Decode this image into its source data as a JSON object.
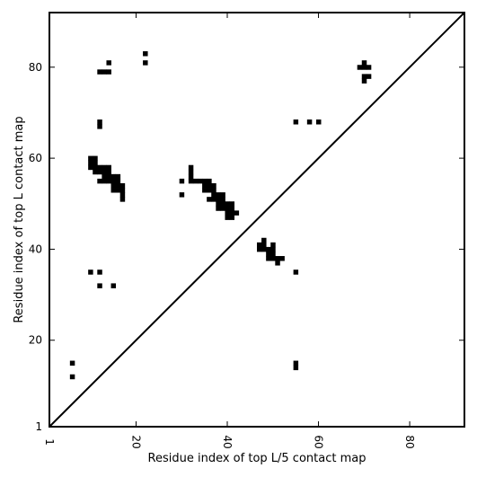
{
  "chart_data": {
    "type": "heatmap",
    "xlabel": "Residue index of top L/5 contact map",
    "ylabel": "Residue index of top L contact map",
    "xlim": [
      1,
      92
    ],
    "ylim": [
      1,
      92
    ],
    "xticks": [
      1,
      20,
      40,
      60,
      80
    ],
    "yticks": [
      1,
      20,
      40,
      60,
      80
    ],
    "grid": false,
    "diagonal": true,
    "cell_color": "#000000",
    "cells": [
      [
        22,
        83
      ],
      [
        22,
        81
      ],
      [
        14,
        81
      ],
      [
        12,
        79
      ],
      [
        13,
        79
      ],
      [
        14,
        79
      ],
      [
        12,
        68
      ],
      [
        12,
        67
      ],
      [
        70,
        81
      ],
      [
        69,
        80
      ],
      [
        70,
        80
      ],
      [
        71,
        80
      ],
      [
        70,
        78
      ],
      [
        71,
        78
      ],
      [
        70,
        77
      ],
      [
        55,
        68
      ],
      [
        58,
        68
      ],
      [
        60,
        68
      ],
      [
        10,
        60
      ],
      [
        11,
        60
      ],
      [
        10,
        59
      ],
      [
        11,
        59
      ],
      [
        10,
        58
      ],
      [
        11,
        58
      ],
      [
        12,
        58
      ],
      [
        13,
        58
      ],
      [
        14,
        58
      ],
      [
        11,
        57
      ],
      [
        12,
        57
      ],
      [
        13,
        57
      ],
      [
        14,
        57
      ],
      [
        13,
        56
      ],
      [
        14,
        56
      ],
      [
        15,
        56
      ],
      [
        16,
        56
      ],
      [
        12,
        55
      ],
      [
        13,
        55
      ],
      [
        14,
        55
      ],
      [
        15,
        55
      ],
      [
        16,
        55
      ],
      [
        15,
        54
      ],
      [
        16,
        54
      ],
      [
        17,
        54
      ],
      [
        15,
        53
      ],
      [
        16,
        53
      ],
      [
        17,
        53
      ],
      [
        17,
        52
      ],
      [
        17,
        51
      ],
      [
        32,
        58
      ],
      [
        32,
        57
      ],
      [
        32,
        56
      ],
      [
        32,
        55
      ],
      [
        33,
        55
      ],
      [
        34,
        55
      ],
      [
        35,
        55
      ],
      [
        36,
        55
      ],
      [
        35,
        54
      ],
      [
        36,
        54
      ],
      [
        37,
        54
      ],
      [
        35,
        53
      ],
      [
        36,
        53
      ],
      [
        37,
        53
      ],
      [
        37,
        52
      ],
      [
        38,
        52
      ],
      [
        39,
        52
      ],
      [
        36,
        51
      ],
      [
        37,
        51
      ],
      [
        38,
        51
      ],
      [
        39,
        51
      ],
      [
        38,
        50
      ],
      [
        39,
        50
      ],
      [
        40,
        50
      ],
      [
        41,
        50
      ],
      [
        38,
        49
      ],
      [
        39,
        49
      ],
      [
        40,
        49
      ],
      [
        41,
        49
      ],
      [
        40,
        48
      ],
      [
        41,
        48
      ],
      [
        42,
        48
      ],
      [
        40,
        47
      ],
      [
        41,
        47
      ],
      [
        30,
        55
      ],
      [
        30,
        52
      ],
      [
        48,
        42
      ],
      [
        47,
        41
      ],
      [
        48,
        41
      ],
      [
        50,
        41
      ],
      [
        47,
        40
      ],
      [
        48,
        40
      ],
      [
        49,
        40
      ],
      [
        50,
        40
      ],
      [
        49,
        39
      ],
      [
        50,
        39
      ],
      [
        49,
        38
      ],
      [
        50,
        38
      ],
      [
        51,
        38
      ],
      [
        52,
        38
      ],
      [
        51,
        37
      ],
      [
        55,
        35
      ],
      [
        10,
        35
      ],
      [
        12,
        35
      ],
      [
        12,
        32
      ],
      [
        15,
        32
      ],
      [
        6,
        15
      ],
      [
        6,
        12
      ],
      [
        55,
        15
      ],
      [
        55,
        14
      ]
    ]
  }
}
